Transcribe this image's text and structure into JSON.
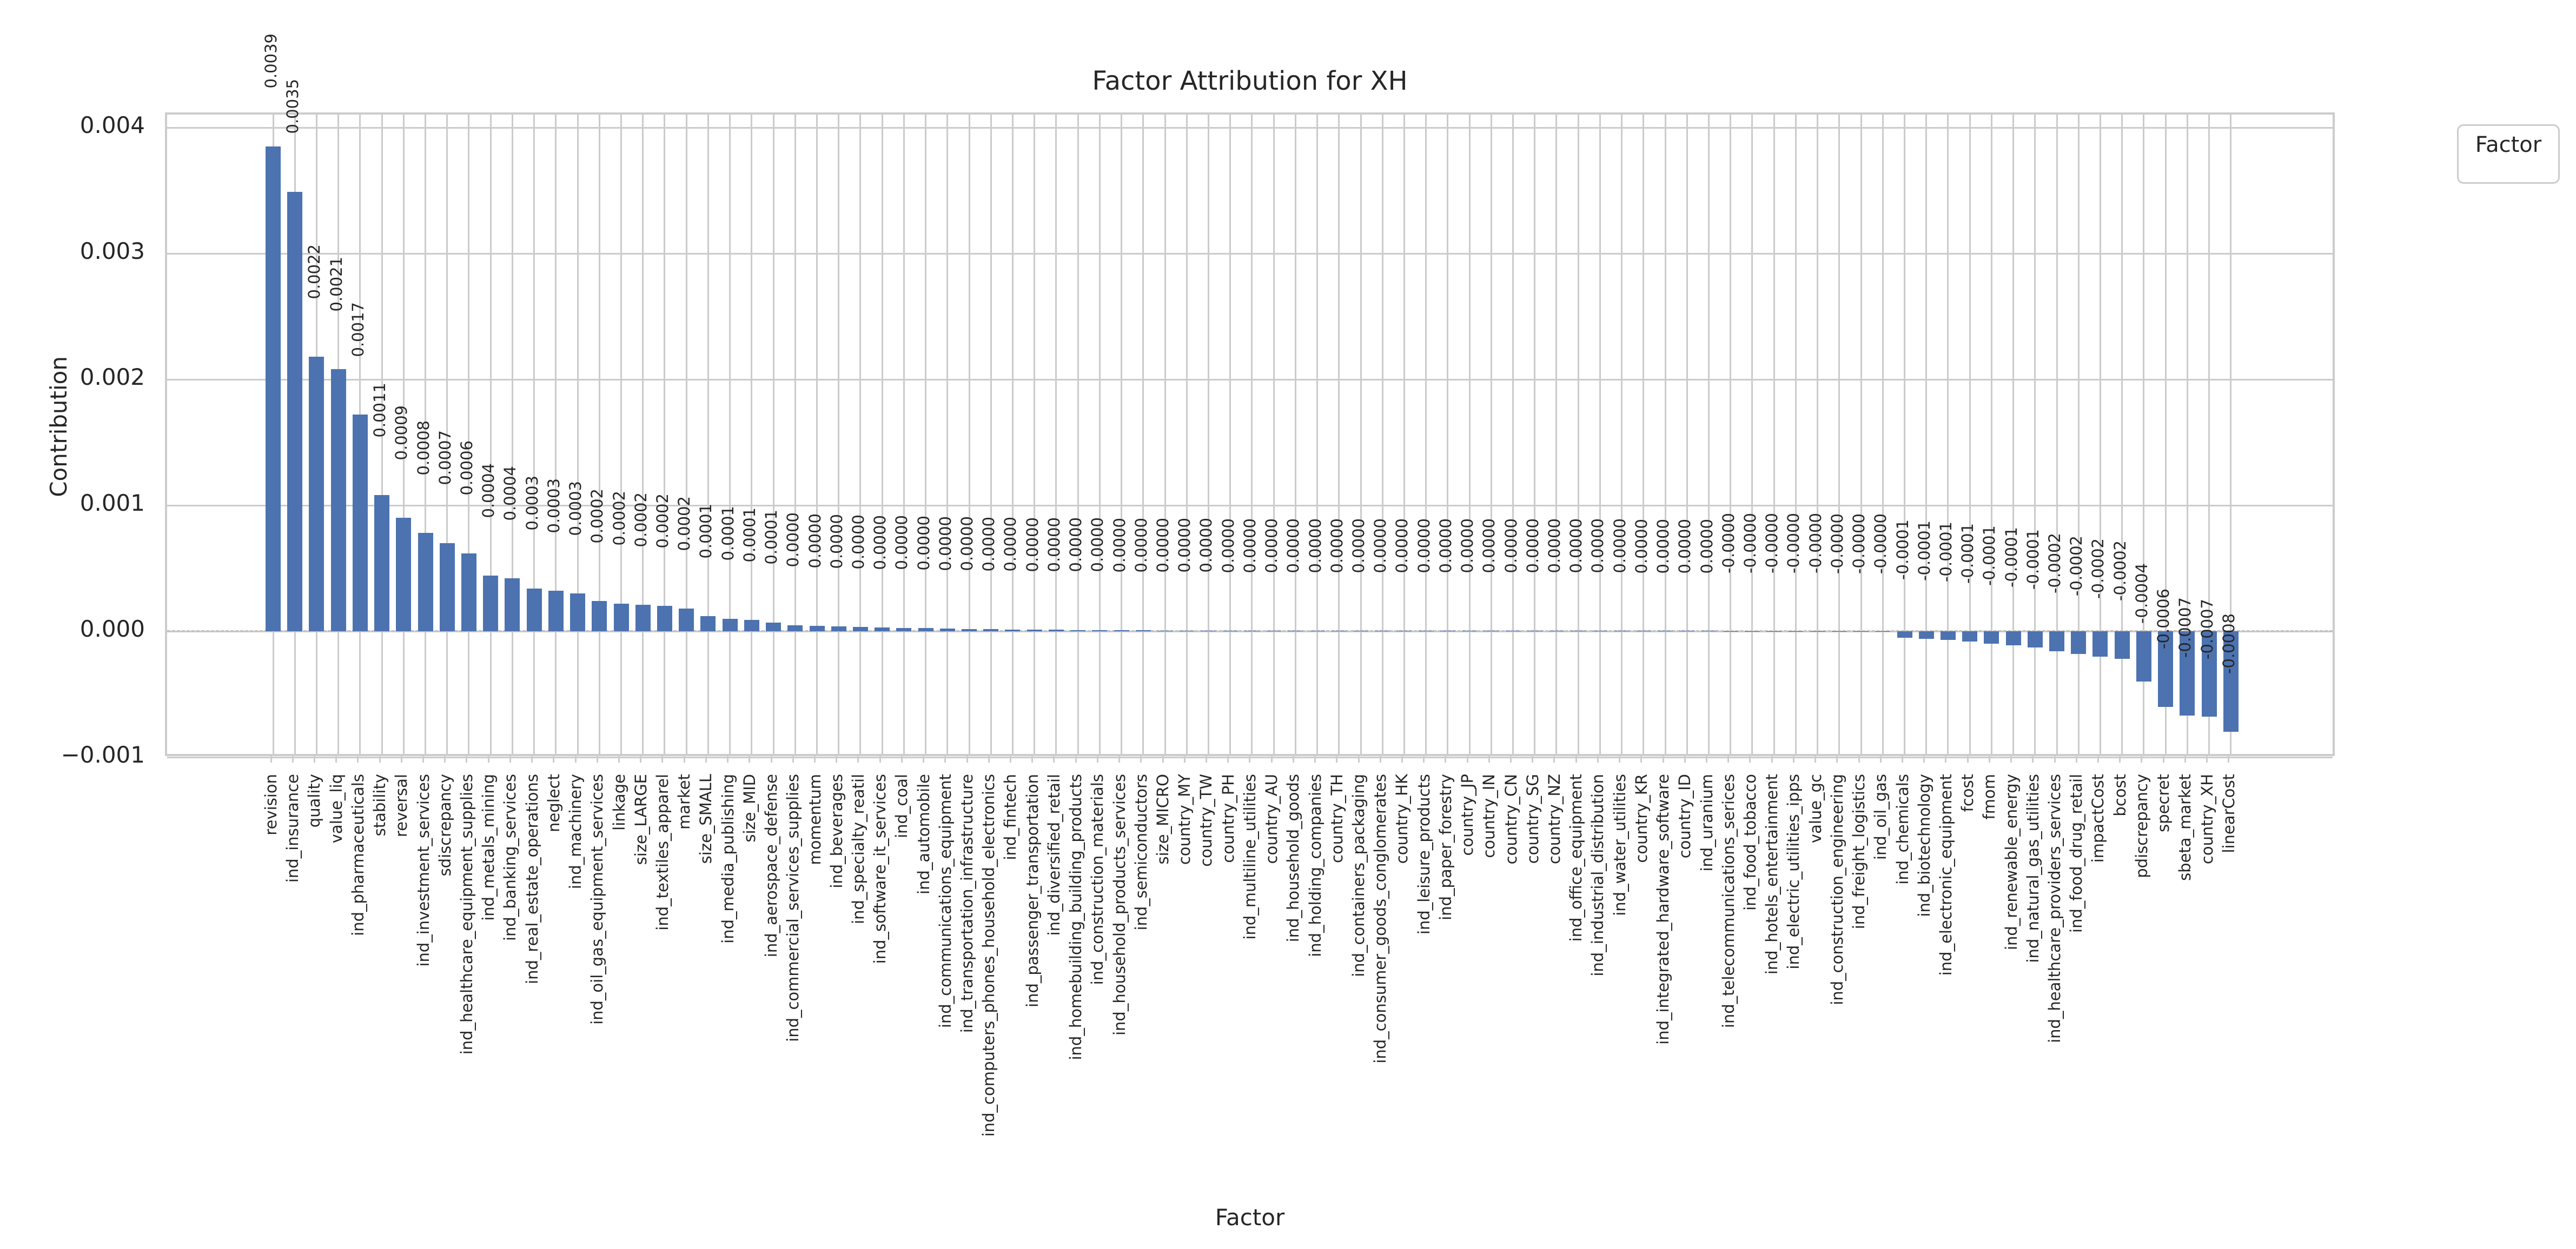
{
  "title": "Factor Attribution for XH",
  "axis": {
    "x_title": "Factor",
    "y_title": "Contribution"
  },
  "legend": {
    "title": "Factor"
  },
  "chart_data": {
    "type": "bar",
    "title": "Factor Attribution for XH",
    "xlabel": "Factor",
    "ylabel": "Contribution",
    "ylim": [
      -0.001,
      0.004
    ],
    "grid": true,
    "bar_color": "#4C72B0",
    "grid_color": "#cbcbcb",
    "legend_position": "upper right outside",
    "ytick_values": [
      0.004,
      0.003,
      0.002,
      0.001,
      0.0,
      -0.001
    ],
    "ytick_labels": [
      "0.004",
      "0.003",
      "0.002",
      "0.001",
      "0.000",
      "−0.001"
    ],
    "categories": [
      "revision",
      "ind_insurance",
      "quality",
      "value_liq",
      "ind_pharmaceuticals",
      "stability",
      "reversal",
      "ind_investment_services",
      "sdiscrepancy",
      "ind_healthcare_equipment_supplies",
      "ind_metals_mining",
      "ind_banking_services",
      "ind_real_estate_operations",
      "neglect",
      "ind_machinery",
      "ind_oil_gas_equipment_services",
      "linkage",
      "size_LARGE",
      "ind_textiles_apparel",
      "market",
      "size_SMALL",
      "ind_media_publishing",
      "size_MID",
      "ind_aerospace_defense",
      "ind_commercial_services_supplies",
      "momentum",
      "ind_beverages",
      "ind_specialty_reatil",
      "ind_software_it_services",
      "ind_coal",
      "ind_automobile",
      "ind_communications_equipment",
      "ind_transportation_infrastructure",
      "ind_computers_phones_household_electronics",
      "ind_fintech",
      "ind_passenger_transportation",
      "ind_diversified_retail",
      "ind_homebuilding_building_products",
      "ind_construction_materials",
      "ind_household_products_services",
      "ind_semiconductors",
      "size_MICRO",
      "country_MY",
      "country_TW",
      "country_PH",
      "ind_multiline_utilities",
      "country_AU",
      "ind_household_goods",
      "ind_holding_companies",
      "country_TH",
      "ind_containers_packaging",
      "ind_consumer_goods_conglomerates",
      "country_HK",
      "ind_leisure_products",
      "ind_paper_forestry",
      "country_JP",
      "country_IN",
      "country_CN",
      "country_SG",
      "country_NZ",
      "ind_office_equipment",
      "ind_industrial_distribution",
      "ind_water_utilities",
      "country_KR",
      "ind_integrated_hardware_software",
      "country_ID",
      "ind_uranium",
      "ind_telecommunications_serices",
      "ind_food_tobacco",
      "ind_hotels_entertainment",
      "ind_electric_utilities_ipps",
      "value_gc",
      "ind_construction_engineering",
      "ind_freight_logistics",
      "ind_oil_gas",
      "ind_chemicals",
      "ind_biotechnology",
      "ind_electronic_equipment",
      "fcost",
      "fmom",
      "ind_renewable_energy",
      "ind_natural_gas_utilities",
      "ind_healthcare_providers_services",
      "ind_food_drug_retail",
      "impactCost",
      "bcost",
      "pdiscrepancy",
      "specret",
      "sbeta_market",
      "country_XH",
      "linearCost"
    ],
    "values": [
      0.00385,
      0.00349,
      0.00218,
      0.00208,
      0.00172,
      0.00108,
      0.0009,
      0.00078,
      0.0007,
      0.00062,
      0.00044,
      0.00042,
      0.00034,
      0.00032,
      0.0003,
      0.00024,
      0.00022,
      0.00021,
      0.0002,
      0.00018,
      0.00012,
      0.0001,
      9e-05,
      7e-05,
      4.8e-05,
      4.3e-05,
      3.8e-05,
      3.4e-05,
      3e-05,
      2.7e-05,
      2.4e-05,
      2.1e-05,
      1.9e-05,
      1.7e-05,
      1.5e-05,
      1.3e-05,
      1.2e-05,
      1e-05,
      9e-06,
      8e-06,
      7e-06,
      6e-06,
      5.5e-06,
      4.8e-06,
      4.2e-06,
      3.7e-06,
      3.2e-06,
      2.8e-06,
      2.4e-06,
      2.1e-06,
      1.8e-06,
      1.5e-06,
      1.3e-06,
      1.1e-06,
      9e-07,
      8e-07,
      6e-07,
      5e-07,
      4e-07,
      3e-07,
      3e-07,
      2e-07,
      2e-07,
      1e-07,
      1e-07,
      1e-07,
      0.0,
      -1e-07,
      -2e-07,
      -4e-07,
      -7e-07,
      -1.2e-06,
      -2e-06,
      -3.5e-06,
      -6e-06,
      -5e-05,
      -6e-05,
      -7e-05,
      -8e-05,
      -0.0001,
      -0.00011,
      -0.00013,
      -0.00016,
      -0.00018,
      -0.0002,
      -0.00022,
      -0.0004,
      -0.0006,
      -0.00067,
      -0.00068,
      -0.0008
    ],
    "value_labels": [
      "0.0039",
      "0.0035",
      "0.0022",
      "0.0021",
      "0.0017",
      "0.0011",
      "0.0009",
      "0.0008",
      "0.0007",
      "0.0006",
      "0.0004",
      "0.0004",
      "0.0003",
      "0.0003",
      "0.0003",
      "0.0002",
      "0.0002",
      "0.0002",
      "0.0002",
      "0.0002",
      "0.0001",
      "0.0001",
      "0.0001",
      "0.0001",
      "0.0000",
      "0.0000",
      "0.0000",
      "0.0000",
      "0.0000",
      "0.0000",
      "0.0000",
      "0.0000",
      "0.0000",
      "0.0000",
      "0.0000",
      "0.0000",
      "0.0000",
      "0.0000",
      "0.0000",
      "0.0000",
      "0.0000",
      "0.0000",
      "0.0000",
      "0.0000",
      "0.0000",
      "0.0000",
      "0.0000",
      "0.0000",
      "0.0000",
      "0.0000",
      "0.0000",
      "0.0000",
      "0.0000",
      "0.0000",
      "0.0000",
      "0.0000",
      "0.0000",
      "0.0000",
      "0.0000",
      "0.0000",
      "0.0000",
      "0.0000",
      "0.0000",
      "0.0000",
      "0.0000",
      "0.0000",
      "0.0000",
      "-0.0000",
      "-0.0000",
      "-0.0000",
      "-0.0000",
      "-0.0000",
      "-0.0000",
      "-0.0000",
      "-0.0000",
      "-0.0001",
      "-0.0001",
      "-0.0001",
      "-0.0001",
      "-0.0001",
      "-0.0001",
      "-0.0001",
      "-0.0002",
      "-0.0002",
      "-0.0002",
      "-0.0002",
      "-0.0004",
      "-0.0006",
      "-0.0007",
      "-0.0007",
      "-0.0008"
    ]
  }
}
